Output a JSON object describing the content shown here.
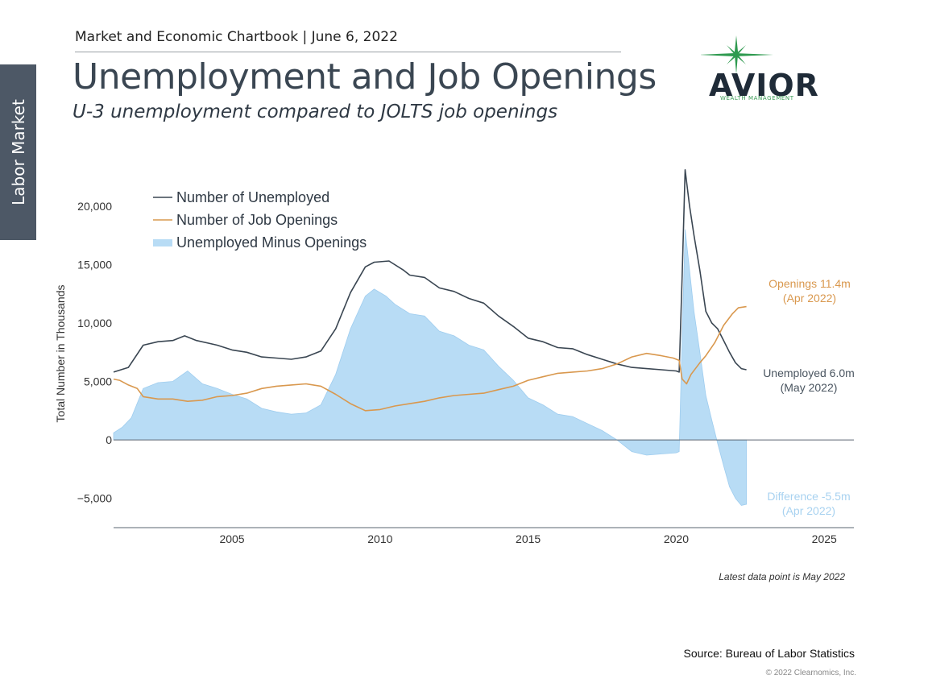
{
  "side_tab": "Labor Market",
  "header": {
    "chartbook": "Market and Economic Chartbook | June 6, 2022",
    "title": "Unemployment and Job Openings",
    "subtitle": "U-3 unemployment compared to JOLTS job openings"
  },
  "logo": {
    "name": "AVIOR",
    "tagline": "WEALTH MANAGEMENT",
    "star_color": "#2e9a4f"
  },
  "footer": {
    "latest": "Latest data point is May 2022",
    "source": "Source: Bureau of Labor Statistics",
    "copyright": "© 2022 Clearnomics, Inc."
  },
  "chart_data": {
    "type": "line",
    "ylabel": "Total Number in Thousands",
    "xlim": [
      2001,
      2026
    ],
    "ylim": [
      -7500,
      23500
    ],
    "yticks": [
      -5000,
      0,
      5000,
      10000,
      15000,
      20000
    ],
    "ytick_labels": [
      "−5,000",
      "0",
      "5,000",
      "10,000",
      "15,000",
      "20,000"
    ],
    "xticks": [
      2005,
      2010,
      2015,
      2020,
      2025
    ],
    "xtick_labels": [
      "2005",
      "2010",
      "2015",
      "2020",
      "2025"
    ],
    "legend_position": "top-left",
    "series": [
      {
        "name": "Number of Unemployed",
        "kind": "line",
        "color": "#3a4652",
        "x": [
          2001.0,
          2001.5,
          2002.0,
          2002.5,
          2003.0,
          2003.4,
          2003.8,
          2004.5,
          2005.0,
          2005.5,
          2006.0,
          2006.5,
          2007.0,
          2007.5,
          2008.0,
          2008.5,
          2009.0,
          2009.5,
          2009.8,
          2010.3,
          2010.8,
          2011.0,
          2011.5,
          2012.0,
          2012.5,
          2013.0,
          2013.5,
          2014.0,
          2014.5,
          2015.0,
          2015.5,
          2016.0,
          2016.5,
          2017.0,
          2017.5,
          2018.0,
          2018.5,
          2019.0,
          2019.5,
          2020.0,
          2020.1,
          2020.2,
          2020.3,
          2020.45,
          2020.6,
          2020.8,
          2021.0,
          2021.2,
          2021.4,
          2021.6,
          2021.8,
          2022.0,
          2022.2,
          2022.37
        ],
        "y": [
          5800,
          6200,
          8100,
          8400,
          8500,
          8900,
          8500,
          8100,
          7700,
          7500,
          7100,
          7000,
          6900,
          7100,
          7600,
          9500,
          12600,
          14800,
          15200,
          15300,
          14500,
          14100,
          13900,
          13000,
          12700,
          12100,
          11700,
          10600,
          9700,
          8700,
          8400,
          7900,
          7800,
          7300,
          6900,
          6500,
          6200,
          6100,
          6000,
          5900,
          5800,
          14000,
          23100,
          20000,
          17500,
          14500,
          11000,
          10000,
          9500,
          8500,
          7500,
          6600,
          6100,
          6000
        ]
      },
      {
        "name": "Number of Job Openings",
        "kind": "line",
        "color": "#d9984e",
        "x": [
          2001.0,
          2001.2,
          2001.5,
          2001.8,
          2002.0,
          2002.5,
          2003.0,
          2003.5,
          2004.0,
          2004.5,
          2005.0,
          2005.5,
          2006.0,
          2006.5,
          2007.0,
          2007.5,
          2008.0,
          2008.5,
          2009.0,
          2009.5,
          2010.0,
          2010.5,
          2011.0,
          2011.5,
          2012.0,
          2012.5,
          2013.0,
          2013.5,
          2014.0,
          2014.5,
          2015.0,
          2015.5,
          2016.0,
          2016.5,
          2017.0,
          2017.5,
          2018.0,
          2018.5,
          2019.0,
          2019.5,
          2019.9,
          2020.1,
          2020.2,
          2020.35,
          2020.5,
          2020.8,
          2021.0,
          2021.3,
          2021.6,
          2021.9,
          2022.1,
          2022.37
        ],
        "y": [
          5200,
          5100,
          4700,
          4400,
          3700,
          3500,
          3500,
          3300,
          3400,
          3700,
          3800,
          4000,
          4400,
          4600,
          4700,
          4800,
          4600,
          3900,
          3100,
          2500,
          2600,
          2900,
          3100,
          3300,
          3600,
          3800,
          3900,
          4000,
          4300,
          4600,
          5100,
          5400,
          5700,
          5800,
          5900,
          6100,
          6500,
          7100,
          7400,
          7200,
          7000,
          6800,
          5200,
          4800,
          5600,
          6600,
          7200,
          8300,
          9800,
          10800,
          11300,
          11400
        ]
      },
      {
        "name": "Unemployed Minus Openings",
        "kind": "area",
        "color": "#b8dcf5",
        "x": [
          2001.0,
          2001.3,
          2001.6,
          2002.0,
          2002.5,
          2003.0,
          2003.5,
          2004.0,
          2004.5,
          2005.0,
          2005.5,
          2006.0,
          2006.5,
          2007.0,
          2007.5,
          2008.0,
          2008.5,
          2009.0,
          2009.5,
          2009.8,
          2010.2,
          2010.5,
          2011.0,
          2011.5,
          2012.0,
          2012.5,
          2013.0,
          2013.5,
          2014.0,
          2014.5,
          2015.0,
          2015.5,
          2016.0,
          2016.5,
          2017.0,
          2017.5,
          2018.0,
          2018.5,
          2019.0,
          2019.5,
          2020.0,
          2020.1,
          2020.2,
          2020.3,
          2020.45,
          2020.6,
          2020.8,
          2021.0,
          2021.2,
          2021.4,
          2021.6,
          2021.8,
          2022.0,
          2022.2,
          2022.37
        ],
        "y": [
          600,
          1100,
          1900,
          4400,
          4900,
          5000,
          5900,
          4800,
          4400,
          3900,
          3500,
          2700,
          2400,
          2200,
          2300,
          3000,
          5600,
          9500,
          12300,
          12900,
          12300,
          11600,
          10800,
          10600,
          9300,
          8900,
          8100,
          7700,
          6300,
          5100,
          3600,
          3000,
          2200,
          2000,
          1400,
          800,
          0,
          -1000,
          -1300,
          -1200,
          -1100,
          -1000,
          8800,
          18000,
          14500,
          11000,
          7500,
          3800,
          1700,
          -300,
          -2200,
          -4000,
          -5000,
          -5600,
          -5500
        ]
      }
    ],
    "annotations": [
      {
        "text": "Openings 11.4m",
        "color": "#d9984e"
      },
      {
        "text": "(Apr 2022)",
        "color": "#d9984e"
      },
      {
        "text": "Unemployed 6.0m",
        "color": "#4a5560"
      },
      {
        "text": "(May 2022)",
        "color": "#4a5560"
      },
      {
        "text": "Difference -5.5m",
        "color": "#a8d2f0"
      },
      {
        "text": "(Apr 2022)",
        "color": "#a8d2f0"
      }
    ]
  }
}
